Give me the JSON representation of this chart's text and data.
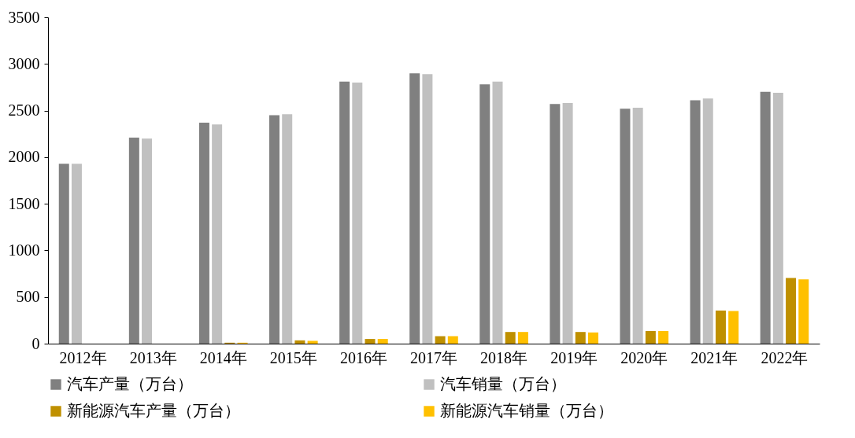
{
  "chart_data": {
    "type": "bar",
    "categories": [
      "2012年",
      "2013年",
      "2014年",
      "2015年",
      "2016年",
      "2017年",
      "2018年",
      "2019年",
      "2020年",
      "2021年",
      "2022年"
    ],
    "series": [
      {
        "name": "汽车产量（万台）",
        "color": "#808080",
        "values": [
          1930,
          2210,
          2370,
          2450,
          2810,
          2900,
          2780,
          2570,
          2520,
          2610,
          2700
        ]
      },
      {
        "name": "汽车销量（万台）",
        "color": "#c0c0c0",
        "values": [
          1930,
          2200,
          2350,
          2460,
          2800,
          2890,
          2810,
          2580,
          2530,
          2630,
          2690
        ]
      },
      {
        "name": "新能源汽车产量（万台）",
        "color": "#bf9000",
        "values": [
          0,
          0,
          10,
          35,
          50,
          80,
          125,
          125,
          135,
          355,
          705
        ]
      },
      {
        "name": "新能源汽车销量（万台）",
        "color": "#ffc000",
        "values": [
          0,
          0,
          10,
          30,
          50,
          80,
          125,
          120,
          135,
          350,
          690
        ]
      }
    ],
    "ylim": [
      0,
      3500
    ],
    "yticks": [
      0,
      500,
      1000,
      1500,
      2000,
      2500,
      3000,
      3500
    ],
    "legend": "bottom"
  }
}
